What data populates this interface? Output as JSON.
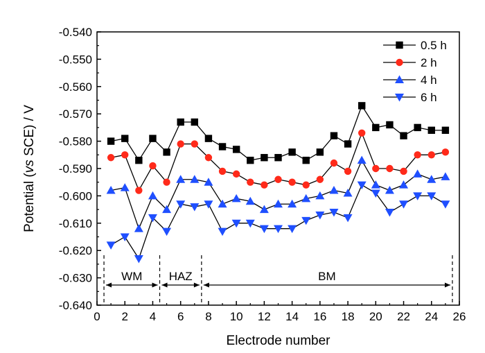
{
  "chart_data": {
    "type": "line",
    "xlabel": "Electrode number",
    "ylabel_parts": [
      "Potential (",
      "vs",
      " SCE) / V"
    ],
    "xlim": [
      0,
      26
    ],
    "ylim": [
      -0.64,
      -0.54
    ],
    "xticks": [
      0,
      2,
      4,
      6,
      8,
      10,
      12,
      14,
      16,
      18,
      20,
      22,
      24,
      26
    ],
    "yticks": [
      -0.54,
      -0.55,
      -0.56,
      -0.57,
      -0.58,
      -0.59,
      -0.6,
      -0.61,
      -0.62,
      -0.63,
      -0.64
    ],
    "ytick_labels": [
      "-0.540",
      "-0.550",
      "-0.560",
      "-0.570",
      "-0.580",
      "-0.590",
      "-0.600",
      "-0.610",
      "-0.620",
      "-0.630",
      "-0.640"
    ],
    "grid": false,
    "legend_position": "top-right",
    "x": [
      1,
      2,
      3,
      4,
      5,
      6,
      7,
      8,
      9,
      10,
      11,
      12,
      13,
      14,
      15,
      16,
      17,
      18,
      19,
      20,
      21,
      22,
      23,
      24,
      25
    ],
    "series": [
      {
        "name": "0.5 h",
        "marker": "square",
        "color": "#000000",
        "values": [
          -0.58,
          -0.579,
          -0.587,
          -0.579,
          -0.584,
          -0.573,
          -0.573,
          -0.579,
          -0.582,
          -0.583,
          -0.587,
          -0.586,
          -0.586,
          -0.584,
          -0.587,
          -0.584,
          -0.578,
          -0.581,
          -0.567,
          -0.575,
          -0.574,
          -0.578,
          -0.575,
          -0.576,
          -0.576
        ]
      },
      {
        "name": "2 h",
        "marker": "circle",
        "color": "#ff2a1a",
        "values": [
          -0.586,
          -0.585,
          -0.598,
          -0.589,
          -0.595,
          -0.581,
          -0.581,
          -0.586,
          -0.591,
          -0.592,
          -0.595,
          -0.596,
          -0.594,
          -0.595,
          -0.596,
          -0.594,
          -0.588,
          -0.591,
          -0.577,
          -0.59,
          -0.59,
          -0.591,
          -0.585,
          -0.585,
          -0.584
        ]
      },
      {
        "name": "4 h",
        "marker": "triangle-up",
        "color": "#1f4fff",
        "values": [
          -0.598,
          -0.597,
          -0.612,
          -0.6,
          -0.605,
          -0.594,
          -0.594,
          -0.595,
          -0.603,
          -0.601,
          -0.602,
          -0.605,
          -0.603,
          -0.603,
          -0.601,
          -0.6,
          -0.598,
          -0.599,
          -0.587,
          -0.596,
          -0.598,
          -0.596,
          -0.592,
          -0.594,
          -0.593
        ]
      },
      {
        "name": "6 h",
        "marker": "triangle-down",
        "color": "#1f4fff",
        "values": [
          -0.618,
          -0.615,
          -0.623,
          -0.608,
          -0.613,
          -0.603,
          -0.604,
          -0.603,
          -0.613,
          -0.61,
          -0.61,
          -0.612,
          -0.612,
          -0.612,
          -0.609,
          -0.607,
          -0.606,
          -0.608,
          -0.596,
          -0.599,
          -0.606,
          -0.603,
          -0.6,
          -0.6,
          -0.603
        ]
      }
    ],
    "annotations": [
      {
        "label": "WM",
        "x_start": 0.5,
        "x_end": 4.5
      },
      {
        "label": "HAZ",
        "x_start": 4.5,
        "x_end": 7.5
      },
      {
        "label": "BM",
        "x_start": 7.5,
        "x_end": 25.5
      }
    ]
  }
}
